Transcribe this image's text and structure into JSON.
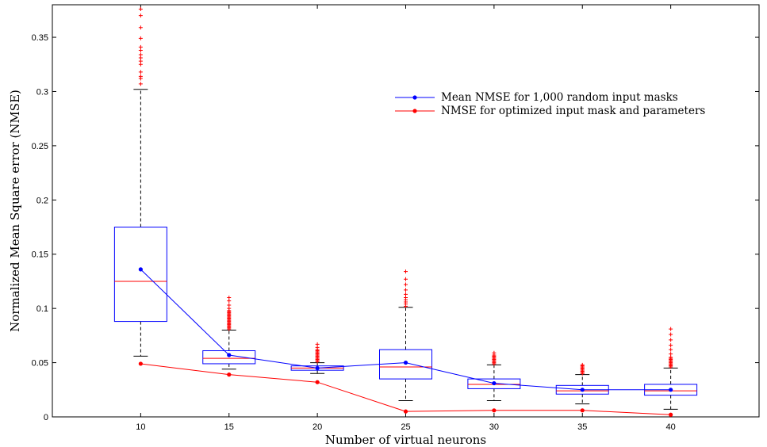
{
  "chart_data": {
    "type": "box+line",
    "xlabel": "Number of virtual neurons",
    "ylabel": "Normalized Mean Square error (NMSE)",
    "x": [
      10,
      15,
      20,
      25,
      30,
      35,
      40
    ],
    "xlim": [
      5,
      45
    ],
    "ylim": [
      0,
      0.38
    ],
    "yticks": [
      0,
      0.05,
      0.1,
      0.15,
      0.2,
      0.25,
      0.3,
      0.35
    ],
    "yticklabels": [
      "0",
      "0.05",
      "0.1",
      "0.15",
      "0.2",
      "0.25",
      "0.3",
      "0.35"
    ],
    "boxes": [
      {
        "x": 10,
        "whisker_low": 0.056,
        "q1": 0.088,
        "median": 0.125,
        "q3": 0.175,
        "whisker_high": 0.302,
        "outliers": [
          0.307,
          0.312,
          0.314,
          0.318,
          0.325,
          0.328,
          0.331,
          0.334,
          0.338,
          0.341,
          0.349,
          0.359,
          0.37,
          0.376
        ]
      },
      {
        "x": 15,
        "whisker_low": 0.044,
        "q1": 0.049,
        "median": 0.054,
        "q3": 0.061,
        "whisker_high": 0.08,
        "outliers": [
          0.081,
          0.082,
          0.083,
          0.084,
          0.085,
          0.086,
          0.087,
          0.088,
          0.089,
          0.09,
          0.091,
          0.092,
          0.093,
          0.094,
          0.095,
          0.096,
          0.097,
          0.098,
          0.1,
          0.103,
          0.107,
          0.11
        ]
      },
      {
        "x": 20,
        "whisker_low": 0.04,
        "q1": 0.043,
        "median": 0.045,
        "q3": 0.047,
        "whisker_high": 0.05,
        "outliers": [
          0.051,
          0.052,
          0.053,
          0.054,
          0.055,
          0.056,
          0.057,
          0.058,
          0.059,
          0.06,
          0.061,
          0.062,
          0.064,
          0.067
        ]
      },
      {
        "x": 25,
        "whisker_low": 0.015,
        "q1": 0.035,
        "median": 0.046,
        "q3": 0.062,
        "whisker_high": 0.101,
        "outliers": [
          0.102,
          0.104,
          0.106,
          0.108,
          0.11,
          0.113,
          0.117,
          0.122,
          0.127,
          0.134
        ]
      },
      {
        "x": 30,
        "whisker_low": 0.015,
        "q1": 0.026,
        "median": 0.03,
        "q3": 0.035,
        "whisker_high": 0.048,
        "outliers": [
          0.049,
          0.05,
          0.051,
          0.052,
          0.053,
          0.054,
          0.055,
          0.056,
          0.057,
          0.059
        ]
      },
      {
        "x": 35,
        "whisker_low": 0.012,
        "q1": 0.021,
        "median": 0.024,
        "q3": 0.029,
        "whisker_high": 0.039,
        "outliers": [
          0.04,
          0.041,
          0.042,
          0.043,
          0.044,
          0.045,
          0.046,
          0.047,
          0.048
        ]
      },
      {
        "x": 40,
        "whisker_low": 0.007,
        "q1": 0.02,
        "median": 0.024,
        "q3": 0.03,
        "whisker_high": 0.045,
        "outliers": [
          0.046,
          0.047,
          0.048,
          0.049,
          0.05,
          0.051,
          0.052,
          0.053,
          0.054,
          0.055,
          0.058,
          0.062,
          0.066,
          0.071,
          0.076,
          0.081
        ]
      }
    ],
    "series": [
      {
        "name": "Mean NMSE for 1,000 random input masks",
        "color": "#0000ff",
        "values": [
          0.136,
          0.057,
          0.045,
          0.05,
          0.031,
          0.025,
          0.025
        ]
      },
      {
        "name": "NMSE for optimized input mask and parameters",
        "color": "#ff0000",
        "values": [
          0.049,
          0.039,
          0.032,
          0.005,
          0.006,
          0.006,
          0.002
        ]
      }
    ],
    "legend_position": "top-right",
    "colors": {
      "box": "#0000ff",
      "median": "#ff0000",
      "whisker": "#000000",
      "outlier": "#ff0000"
    }
  }
}
